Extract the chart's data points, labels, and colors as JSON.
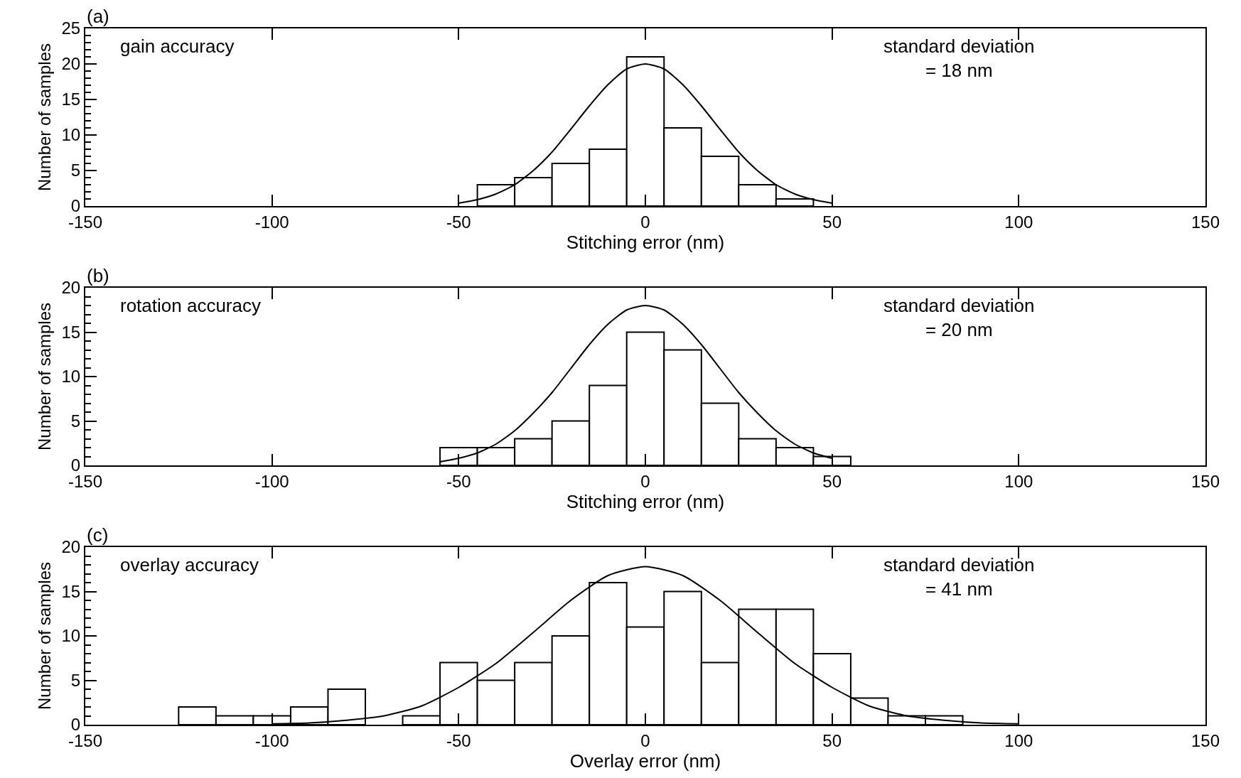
{
  "chart_data": [
    {
      "type": "histogram",
      "xlabel": "Stitching error (nm)",
      "ylabel": "Number of samples",
      "color": "#ffffff",
      "bins": [
        -45,
        -35,
        -25,
        -15,
        -5,
        5,
        15,
        25,
        35,
        45
      ],
      "values": [
        3,
        4,
        6,
        8,
        21,
        11,
        7,
        3,
        1
      ],
      "series": [
        {
          "type": "line",
          "color": "#000000",
          "x": [
            -50,
            -45,
            -40,
            -35,
            -30,
            -25,
            -20,
            -15,
            -10,
            -5,
            0,
            5,
            10,
            15,
            20,
            25,
            30,
            35,
            40,
            45,
            50
          ],
          "values": [
            0.4,
            0.9,
            1.7,
            3.0,
            5.0,
            7.6,
            10.8,
            14.1,
            17.1,
            19.3,
            20,
            19.3,
            17.1,
            14.1,
            10.8,
            7.6,
            5.0,
            3.0,
            1.7,
            0.9,
            0.4
          ]
        }
      ],
      "xlim": [
        -150,
        150
      ],
      "xticks": [
        -150,
        -100,
        -50,
        0,
        50,
        100,
        150
      ],
      "ylim": [
        0,
        25
      ],
      "yticks": [
        0,
        {
          "value": 1,
          "label": null
        },
        {
          "value": 2,
          "label": null
        },
        {
          "value": 3,
          "label": null
        },
        {
          "value": 4,
          "label": null
        },
        5,
        {
          "value": 6,
          "label": null
        },
        {
          "value": 7,
          "label": null
        },
        {
          "value": 8,
          "label": null
        },
        {
          "value": 9,
          "label": null
        },
        10,
        {
          "value": 11,
          "label": null
        },
        {
          "value": 12,
          "label": null
        },
        {
          "value": 13,
          "label": null
        },
        {
          "value": 14,
          "label": null
        },
        15,
        {
          "value": 16,
          "label": null
        },
        {
          "value": 17,
          "label": null
        },
        {
          "value": 18,
          "label": null
        },
        {
          "value": 19,
          "label": null
        },
        20,
        {
          "value": 21,
          "label": null
        },
        {
          "value": 22,
          "label": null
        },
        {
          "value": 23,
          "label": null
        },
        {
          "value": 24,
          "label": null
        },
        25
      ],
      "annotations": [
        "(a)",
        "gain accuracy",
        "standard deviation\n= 18 nm"
      ]
    },
    {
      "type": "histogram",
      "xlabel": "Stitching error (nm)",
      "ylabel": "Number of samples",
      "color": "#ffffff",
      "bins": [
        -55,
        -45,
        -35,
        -25,
        -15,
        -5,
        5,
        15,
        25,
        35,
        45,
        55
      ],
      "values": [
        2,
        2,
        3,
        5,
        9,
        15,
        13,
        7,
        3,
        2,
        1
      ],
      "series": [
        {
          "type": "line",
          "color": "#000000",
          "x": [
            -55,
            -50,
            -45,
            -40,
            -35,
            -30,
            -25,
            -20,
            -15,
            -10,
            -5,
            0,
            5,
            10,
            15,
            20,
            25,
            30,
            35,
            40,
            45,
            50
          ],
          "values": [
            0.4,
            0.8,
            1.4,
            2.4,
            3.9,
            5.9,
            8.2,
            10.9,
            13.6,
            15.9,
            17.5,
            18,
            17.5,
            15.9,
            13.6,
            10.9,
            8.2,
            5.9,
            3.9,
            2.4,
            1.4,
            0.8
          ]
        }
      ],
      "xlim": [
        -150,
        150
      ],
      "xticks": [
        -150,
        -100,
        -50,
        0,
        50,
        100,
        150
      ],
      "ylim": [
        0,
        20
      ],
      "yticks": [
        0,
        {
          "value": 1,
          "label": null
        },
        {
          "value": 2,
          "label": null
        },
        {
          "value": 3,
          "label": null
        },
        {
          "value": 4,
          "label": null
        },
        5,
        {
          "value": 6,
          "label": null
        },
        {
          "value": 7,
          "label": null
        },
        {
          "value": 8,
          "label": null
        },
        {
          "value": 9,
          "label": null
        },
        10,
        {
          "value": 11,
          "label": null
        },
        {
          "value": 12,
          "label": null
        },
        {
          "value": 13,
          "label": null
        },
        {
          "value": 14,
          "label": null
        },
        15,
        {
          "value": 16,
          "label": null
        },
        {
          "value": 17,
          "label": null
        },
        {
          "value": 18,
          "label": null
        },
        {
          "value": 19,
          "label": null
        },
        20
      ],
      "annotations": [
        "(b)",
        "rotation accuracy",
        "standard deviation\n= 20 nm"
      ]
    },
    {
      "type": "histogram",
      "xlabel": "Overlay error (nm)",
      "ylabel": "Number of samples",
      "color": "#ffffff",
      "bins": [
        -125,
        -115,
        -105,
        -95,
        -85,
        -75,
        -65,
        -55,
        -45,
        -35,
        -25,
        -15,
        -5,
        5,
        15,
        25,
        35,
        45,
        55,
        65,
        75,
        85
      ],
      "values": [
        2,
        1,
        1,
        2,
        4,
        0,
        1,
        7,
        5,
        7,
        10,
        16,
        11,
        15,
        7,
        13,
        13,
        8,
        3,
        1,
        1
      ],
      "series": [
        {
          "type": "line",
          "color": "#000000",
          "x": [
            -100,
            -90,
            -80,
            -70,
            -60,
            -50,
            -40,
            -30,
            -20,
            -10,
            0,
            10,
            20,
            30,
            40,
            50,
            60,
            70,
            80,
            90,
            100
          ],
          "values": [
            0.1,
            0.2,
            0.5,
            1.0,
            2.1,
            4.2,
            6.9,
            10.4,
            14.0,
            16.8,
            17.8,
            16.8,
            14.0,
            10.4,
            6.9,
            4.2,
            2.1,
            1.0,
            0.5,
            0.2,
            0.1
          ]
        }
      ],
      "xlim": [
        -150,
        150
      ],
      "xticks": [
        -150,
        -100,
        -50,
        0,
        50,
        100,
        150
      ],
      "ylim": [
        0,
        20
      ],
      "yticks": [
        0,
        {
          "value": 1,
          "label": null
        },
        {
          "value": 2,
          "label": null
        },
        {
          "value": 3,
          "label": null
        },
        {
          "value": 4,
          "label": null
        },
        5,
        {
          "value": 6,
          "label": null
        },
        {
          "value": 7,
          "label": null
        },
        {
          "value": 8,
          "label": null
        },
        {
          "value": 9,
          "label": null
        },
        10,
        {
          "value": 11,
          "label": null
        },
        {
          "value": 12,
          "label": null
        },
        {
          "value": 13,
          "label": null
        },
        {
          "value": 14,
          "label": null
        },
        15,
        {
          "value": 16,
          "label": null
        },
        {
          "value": 17,
          "label": null
        },
        {
          "value": 18,
          "label": null
        },
        {
          "value": 19,
          "label": null
        },
        20
      ],
      "annotations": [
        "(c)",
        "overlay accuracy",
        "standard deviation\n= 41 nm"
      ]
    }
  ]
}
